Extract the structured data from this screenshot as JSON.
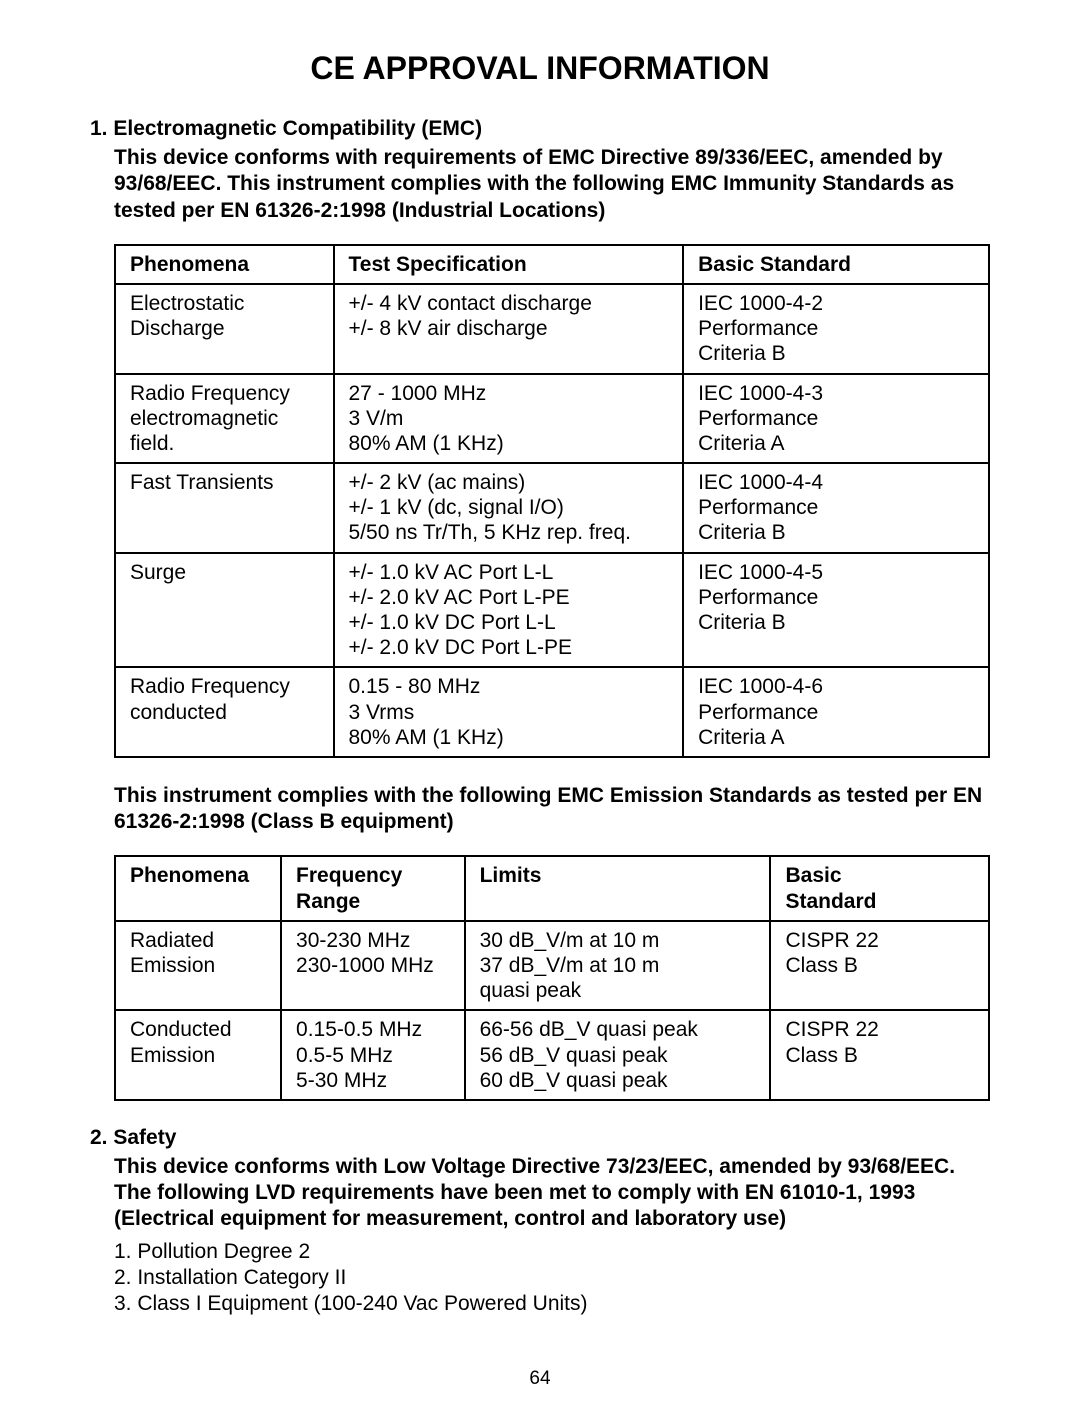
{
  "title": "CE APPROVAL INFORMATION",
  "section1": {
    "heading": "1. Electromagnetic Compatibility (EMC)",
    "intro": "This device conforms with requirements of EMC Directive 89/336/EEC, amended by 93/68/EEC. This instrument complies with the following EMC Immunity Standards as tested per EN 61326-2:1998 (Industrial Locations)"
  },
  "table1": {
    "headers": [
      "Phenomena",
      "Test Specification",
      "Basic Standard"
    ],
    "rows": [
      {
        "phenomena": "Electrostatic\nDischarge",
        "spec": "+/- 4 kV contact discharge\n+/- 8 kV air discharge",
        "standard": "IEC 1000-4-2\nPerformance\nCriteria B"
      },
      {
        "phenomena": "Radio Frequency\nelectromagnetic\nfield.",
        "spec": "27 - 1000 MHz\n3 V/m\n80% AM (1 KHz)",
        "standard": "IEC 1000-4-3\nPerformance\nCriteria A"
      },
      {
        "phenomena": "Fast Transients",
        "spec": "+/- 2 kV (ac mains)\n+/- 1 kV (dc, signal I/O)\n5/50 ns Tr/Th, 5 KHz rep. freq.",
        "standard": "IEC 1000-4-4\nPerformance\nCriteria B"
      },
      {
        "phenomena": "Surge",
        "spec": "+/- 1.0 kV AC Port L-L\n+/- 2.0 kV AC Port L-PE\n+/- 1.0 kV DC Port L-L\n+/- 2.0 kV DC Port L-PE",
        "standard": "IEC 1000-4-5\nPerformance\nCriteria B"
      },
      {
        "phenomena": "Radio Frequency\nconducted",
        "spec": "0.15 - 80 MHz\n3 Vrms\n80% AM (1 KHz)",
        "standard": "IEC 1000-4-6\nPerformance\nCriteria A"
      }
    ]
  },
  "mid_intro": "This instrument complies with the following EMC Emission Standards as tested per EN 61326-2:1998 (Class B equipment)",
  "table2": {
    "headers": [
      "Phenomena",
      "Frequency Range",
      "Limits",
      "Basic Standard"
    ],
    "rows": [
      {
        "phenomena": "Radiated\nEmission",
        "freq": "30-230 MHz\n230-1000 MHz",
        "limits": "30 dB_V/m at 10 m\n37 dB_V/m at 10 m\nquasi peak",
        "standard": "CISPR 22\nClass B"
      },
      {
        "phenomena": "Conducted\nEmission",
        "freq": "0.15-0.5 MHz\n0.5-5 MHz\n5-30 MHz",
        "limits": "66-56 dB_V quasi peak\n56 dB_V quasi peak\n60 dB_V quasi peak",
        "standard": "CISPR 22\nClass B"
      }
    ]
  },
  "section2": {
    "heading": "2. Safety",
    "intro": "This device conforms with Low Voltage Directive 73/23/EEC, amended by 93/68/EEC. The following LVD requirements have been met to comply with EN 61010-1, 1993 (Electrical equipment for measurement, control and laboratory use)",
    "items": [
      "1. Pollution Degree 2",
      "2. Installation Category II",
      "3. Class I Equipment (100-240 Vac Powered Units)"
    ]
  },
  "page_number": "64",
  "table1_col_widths": [
    "25%",
    "40%",
    "35%"
  ],
  "table2_col_widths": [
    "19%",
    "21%",
    "35%",
    "25%"
  ]
}
